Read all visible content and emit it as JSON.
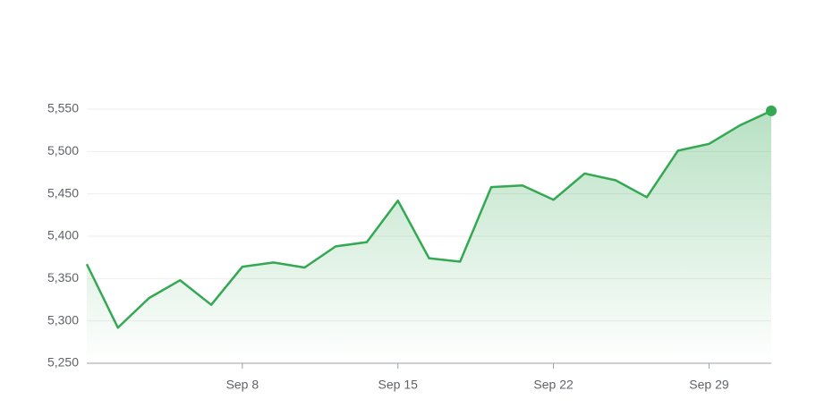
{
  "chart_data": {
    "type": "line",
    "categories": [
      null,
      null,
      null,
      null,
      null,
      "Sep 8",
      null,
      null,
      null,
      null,
      "Sep 15",
      null,
      null,
      null,
      null,
      "Sep 22",
      null,
      null,
      null,
      null,
      "Sep 29",
      null,
      null
    ],
    "values": [
      5367,
      5292,
      5327,
      5348,
      5319,
      5364,
      5369,
      5363,
      5388,
      5393,
      5442,
      5374,
      5370,
      5458,
      5460,
      5443,
      5474,
      5466,
      5446,
      5501,
      5509,
      5531,
      5548
    ],
    "color": "#34a853",
    "ylim": [
      5250,
      5550
    ],
    "yticks": [
      {
        "value": 5250,
        "label": "5,250"
      },
      {
        "value": 5300,
        "label": "5,300"
      },
      {
        "value": 5350,
        "label": "5,350"
      },
      {
        "value": 5400,
        "label": "5,400"
      },
      {
        "value": 5450,
        "label": "5,450"
      },
      {
        "value": 5500,
        "label": "5,500"
      },
      {
        "value": 5550,
        "label": "5,550"
      }
    ],
    "grid": true
  }
}
